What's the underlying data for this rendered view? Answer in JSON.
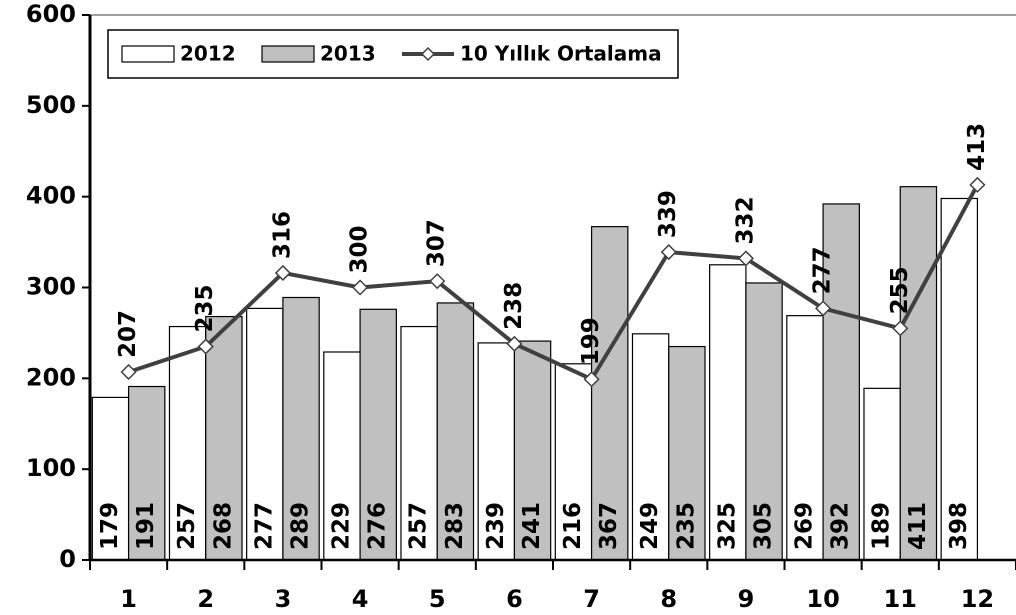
{
  "chart_data": {
    "type": "bar",
    "categories": [
      "1",
      "2",
      "3",
      "4",
      "5",
      "6",
      "7",
      "8",
      "9",
      "10",
      "11",
      "12"
    ],
    "series": [
      {
        "name": "2012",
        "type": "bar",
        "color": "#ffffff",
        "values": [
          179,
          257,
          277,
          229,
          257,
          239,
          216,
          249,
          325,
          269,
          189,
          398
        ]
      },
      {
        "name": "2013",
        "type": "bar",
        "color": "#c0c0c0",
        "values": [
          191,
          268,
          289,
          276,
          283,
          241,
          367,
          235,
          305,
          392,
          411,
          null
        ]
      },
      {
        "name": "10 Yıllık Ortalama",
        "type": "line",
        "color": "#404040",
        "values": [
          207,
          235,
          316,
          300,
          307,
          238,
          199,
          339,
          332,
          277,
          255,
          413
        ]
      }
    ],
    "ylim": [
      0,
      600
    ],
    "yticks": [
      0,
      100,
      200,
      300,
      400,
      500,
      600
    ],
    "grid": false,
    "legend": "top-left"
  }
}
